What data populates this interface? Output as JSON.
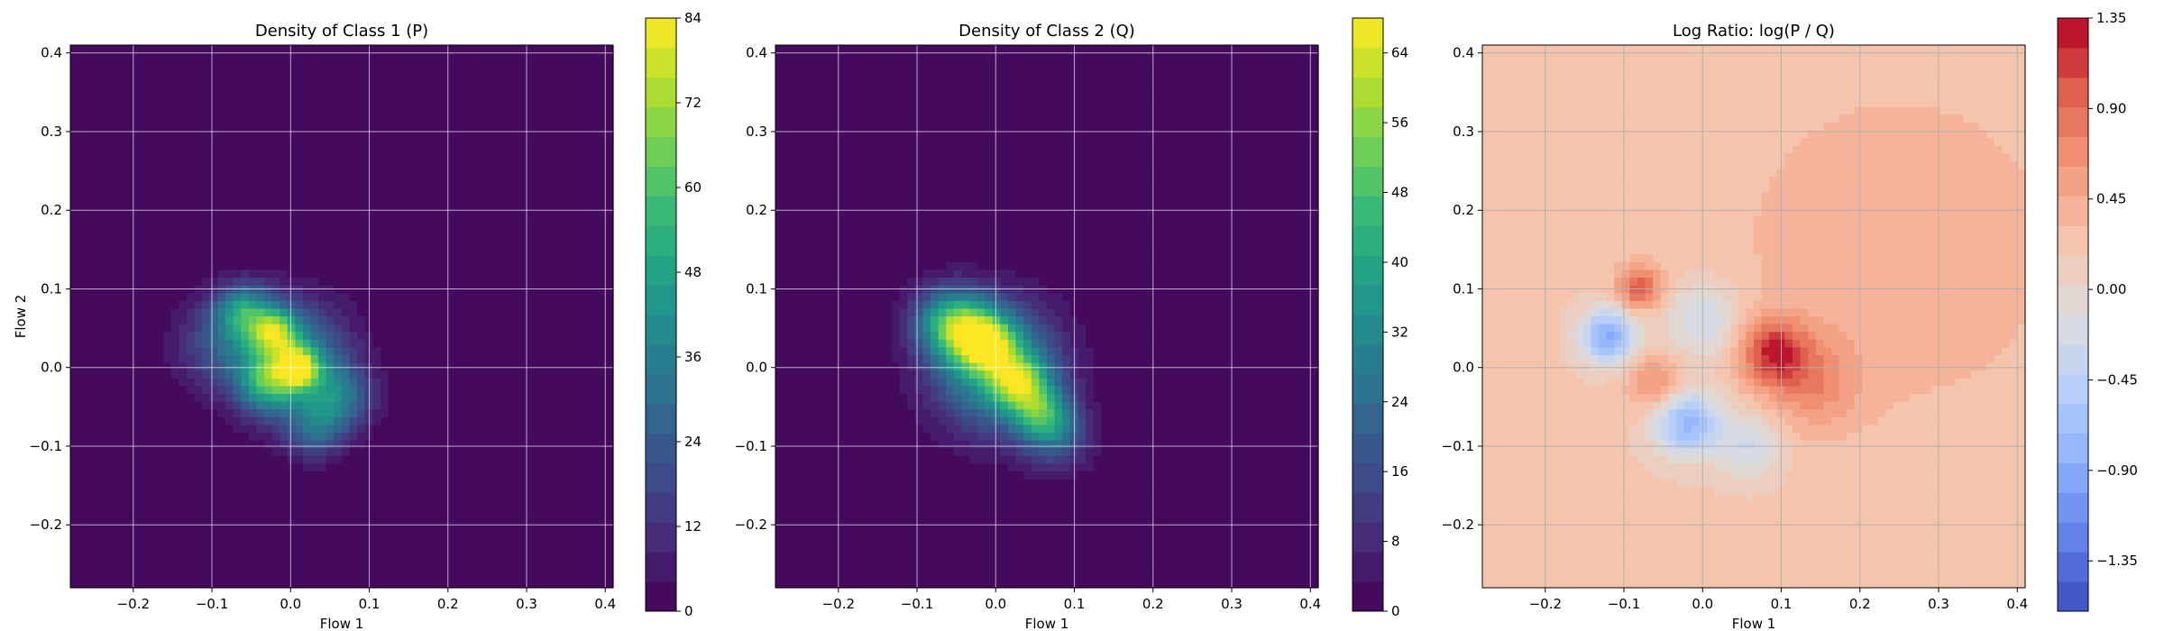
{
  "chart_data": [
    {
      "type": "heatmap",
      "title": "Density of Class 1 (P)",
      "xlabel": "Flow 1",
      "ylabel": "Flow 2",
      "xlim": [
        -0.28,
        0.41
      ],
      "ylim": [
        -0.28,
        0.41
      ],
      "x_ticks": [
        -0.2,
        -0.1,
        0.0,
        0.1,
        0.2,
        0.3,
        0.4
      ],
      "x_tick_labels": [
        "−0.2",
        "−0.1",
        "0.0",
        "0.1",
        "0.2",
        "0.3",
        "0.4"
      ],
      "y_ticks": [
        -0.2,
        -0.1,
        0.0,
        0.1,
        0.2,
        0.3,
        0.4
      ],
      "y_tick_labels": [
        "−0.2",
        "−0.1",
        "0.0",
        "0.1",
        "0.2",
        "0.3",
        "0.4"
      ],
      "grid": true,
      "colormap": "viridis",
      "colorbar": {
        "min": 0,
        "max": 84,
        "ticks": [
          0,
          12,
          24,
          36,
          48,
          60,
          72,
          84
        ],
        "tick_labels": [
          "0",
          "12",
          "24",
          "36",
          "48",
          "60",
          "72",
          "84"
        ]
      },
      "blobs": [
        {
          "x": 0.0,
          "y": 0.01,
          "peak": 40,
          "spread": 0.05
        },
        {
          "x": -0.06,
          "y": 0.07,
          "peak": 38,
          "spread": 0.025
        },
        {
          "x": -0.02,
          "y": 0.045,
          "peak": 45,
          "spread": 0.02
        },
        {
          "x": 0.01,
          "y": 0.0,
          "peak": 55,
          "spread": 0.018
        },
        {
          "x": -0.03,
          "y": -0.02,
          "peak": 35,
          "spread": 0.025
        },
        {
          "x": 0.06,
          "y": -0.04,
          "peak": 28,
          "spread": 0.03
        },
        {
          "x": -0.09,
          "y": 0.03,
          "peak": 18,
          "spread": 0.04
        },
        {
          "x": 0.03,
          "y": -0.08,
          "peak": 22,
          "spread": 0.025
        }
      ]
    },
    {
      "type": "heatmap",
      "title": "Density of Class 2 (Q)",
      "xlabel": "Flow 1",
      "ylabel": "",
      "xlim": [
        -0.28,
        0.41
      ],
      "ylim": [
        -0.28,
        0.41
      ],
      "x_ticks": [
        -0.2,
        -0.1,
        0.0,
        0.1,
        0.2,
        0.3,
        0.4
      ],
      "x_tick_labels": [
        "−0.2",
        "−0.1",
        "0.0",
        "0.1",
        "0.2",
        "0.3",
        "0.4"
      ],
      "y_ticks": [
        -0.2,
        -0.1,
        0.0,
        0.1,
        0.2,
        0.3,
        0.4
      ],
      "y_tick_labels": [
        "−0.2",
        "−0.1",
        "0.0",
        "0.1",
        "0.2",
        "0.3",
        "0.4"
      ],
      "grid": true,
      "colormap": "viridis",
      "colorbar": {
        "min": 0,
        "max": 68,
        "ticks": [
          0,
          8,
          16,
          24,
          32,
          40,
          48,
          56,
          64
        ],
        "tick_labels": [
          "0",
          "8",
          "16",
          "24",
          "32",
          "40",
          "48",
          "56",
          "64"
        ]
      },
      "blobs": [
        {
          "x": 0.0,
          "y": 0.0,
          "peak": 38,
          "spread": 0.055
        },
        {
          "x": -0.04,
          "y": 0.05,
          "peak": 32,
          "spread": 0.03
        },
        {
          "x": -0.01,
          "y": 0.03,
          "peak": 36,
          "spread": 0.025
        },
        {
          "x": 0.03,
          "y": -0.02,
          "peak": 34,
          "spread": 0.025
        },
        {
          "x": 0.06,
          "y": -0.06,
          "peak": 30,
          "spread": 0.025
        },
        {
          "x": -0.07,
          "y": 0.06,
          "peak": 20,
          "spread": 0.03
        },
        {
          "x": 0.08,
          "y": -0.09,
          "peak": 16,
          "spread": 0.03
        }
      ]
    },
    {
      "type": "heatmap",
      "title": "Log Ratio: log(P / Q)",
      "xlabel": "Flow 1",
      "ylabel": "",
      "xlim": [
        -0.28,
        0.41
      ],
      "ylim": [
        -0.28,
        0.41
      ],
      "x_ticks": [
        -0.2,
        -0.1,
        0.0,
        0.1,
        0.2,
        0.3,
        0.4
      ],
      "x_tick_labels": [
        "−0.2",
        "−0.1",
        "0.0",
        "0.1",
        "0.2",
        "0.3",
        "0.4"
      ],
      "y_ticks": [
        -0.2,
        -0.1,
        0.0,
        0.1,
        0.2,
        0.3,
        0.4
      ],
      "y_tick_labels": [
        "−0.2",
        "−0.1",
        "0.0",
        "0.1",
        "0.2",
        "0.3",
        "0.4"
      ],
      "grid": true,
      "colormap": "coolwarm",
      "colorbar": {
        "min": -1.6,
        "max": 1.35,
        "ticks": [
          -1.35,
          -0.9,
          -0.45,
          0.0,
          0.45,
          0.9,
          1.35
        ],
        "tick_labels": [
          "−1.35",
          "−0.90",
          "−0.45",
          "0.00",
          "0.45",
          "0.90",
          "1.35"
        ]
      },
      "baseline": 0.2,
      "blobs": [
        {
          "x": -0.12,
          "y": 0.04,
          "peak": -1.1,
          "spread": 0.025
        },
        {
          "x": -0.02,
          "y": -0.07,
          "peak": -1.0,
          "spread": 0.03
        },
        {
          "x": 0.06,
          "y": -0.1,
          "peak": -0.5,
          "spread": 0.03
        },
        {
          "x": 0.0,
          "y": 0.06,
          "peak": -0.5,
          "spread": 0.035
        },
        {
          "x": -0.08,
          "y": 0.1,
          "peak": 0.8,
          "spread": 0.02
        },
        {
          "x": 0.09,
          "y": 0.02,
          "peak": 0.9,
          "spread": 0.03
        },
        {
          "x": -0.06,
          "y": -0.02,
          "peak": 0.5,
          "spread": 0.025
        },
        {
          "x": 0.14,
          "y": -0.02,
          "peak": 0.45,
          "spread": 0.04
        },
        {
          "x": 0.25,
          "y": 0.15,
          "peak": 0.25,
          "spread": 0.15
        }
      ]
    }
  ]
}
